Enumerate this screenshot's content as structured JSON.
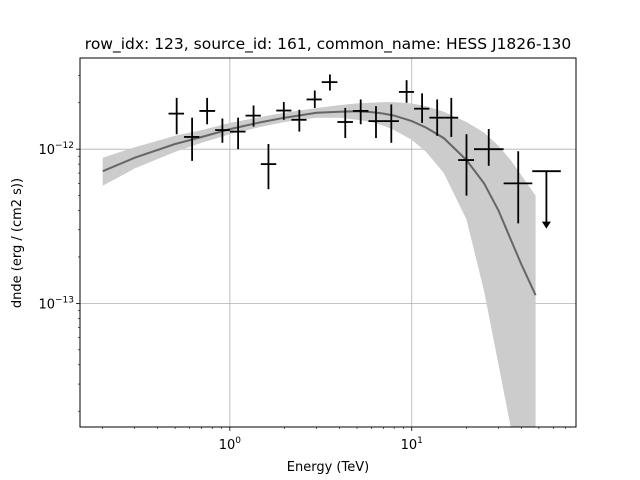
{
  "chart_data": {
    "type": "scatter",
    "title": "row_idx: 123, source_id: 161, common_name: HESS J1826-130",
    "xlabel": "Energy (TeV)",
    "ylabel": "dnde (erg / (cm2 s))",
    "x_scale": "log",
    "y_scale": "log",
    "xlim": [
      0.15,
      80
    ],
    "ylim": [
      1.58e-14,
      3.9e-12
    ],
    "x_ticks": [
      {
        "value": 1,
        "base": "10",
        "exp": "0"
      },
      {
        "value": 10,
        "base": "10",
        "exp": "1"
      }
    ],
    "y_ticks": [
      {
        "value": 1e-13,
        "base": "10",
        "exp": "−13"
      },
      {
        "value": 1e-12,
        "base": "10",
        "exp": "−12"
      }
    ],
    "grid": true,
    "legend": "none",
    "colors": {
      "points": "#000000",
      "model": "#666666",
      "band": "#cccccc"
    },
    "points": [
      {
        "x": 0.51,
        "y": 1.7e-12,
        "xlo": 0.46,
        "xhi": 0.56,
        "ylo": 1.25e-12,
        "yhi": 2.15e-12
      },
      {
        "x": 0.62,
        "y": 1.2e-12,
        "xlo": 0.56,
        "xhi": 0.68,
        "ylo": 8.4e-13,
        "yhi": 1.6e-12
      },
      {
        "x": 0.75,
        "y": 1.77e-12,
        "xlo": 0.68,
        "xhi": 0.83,
        "ylo": 1.45e-12,
        "yhi": 2.15e-12
      },
      {
        "x": 0.91,
        "y": 1.33e-12,
        "xlo": 0.83,
        "xhi": 1.0,
        "ylo": 1.1e-12,
        "yhi": 1.58e-12
      },
      {
        "x": 1.11,
        "y": 1.3e-12,
        "xlo": 1.0,
        "xhi": 1.22,
        "ylo": 1e-12,
        "yhi": 1.6e-12
      },
      {
        "x": 1.35,
        "y": 1.65e-12,
        "xlo": 1.22,
        "xhi": 1.48,
        "ylo": 1.4e-12,
        "yhi": 1.92e-12
      },
      {
        "x": 1.63,
        "y": 8e-13,
        "xlo": 1.48,
        "xhi": 1.8,
        "ylo": 5.5e-13,
        "yhi": 1.08e-12
      },
      {
        "x": 1.98,
        "y": 1.78e-12,
        "xlo": 1.8,
        "xhi": 2.18,
        "ylo": 1.55e-12,
        "yhi": 2.02e-12
      },
      {
        "x": 2.41,
        "y": 1.55e-12,
        "xlo": 2.18,
        "xhi": 2.64,
        "ylo": 1.3e-12,
        "yhi": 1.8e-12
      },
      {
        "x": 2.93,
        "y": 2.1e-12,
        "xlo": 2.64,
        "xhi": 3.2,
        "ylo": 1.85e-12,
        "yhi": 2.4e-12
      },
      {
        "x": 3.55,
        "y": 2.72e-12,
        "xlo": 3.2,
        "xhi": 3.9,
        "ylo": 2.4e-12,
        "yhi": 3.05e-12
      },
      {
        "x": 4.31,
        "y": 1.5e-12,
        "xlo": 3.9,
        "xhi": 4.75,
        "ylo": 1.18e-12,
        "yhi": 1.85e-12
      },
      {
        "x": 5.24,
        "y": 1.77e-12,
        "xlo": 4.75,
        "xhi": 5.78,
        "ylo": 1.45e-12,
        "yhi": 2.1e-12
      },
      {
        "x": 6.36,
        "y": 1.52e-12,
        "xlo": 5.78,
        "xhi": 7.0,
        "ylo": 1.18e-12,
        "yhi": 1.9e-12
      },
      {
        "x": 7.72,
        "y": 1.52e-12,
        "xlo": 7.0,
        "xhi": 8.5,
        "ylo": 1.1e-12,
        "yhi": 1.95e-12
      },
      {
        "x": 9.37,
        "y": 2.35e-12,
        "xlo": 8.5,
        "xhi": 10.3,
        "ylo": 2e-12,
        "yhi": 2.8e-12
      },
      {
        "x": 11.4,
        "y": 1.83e-12,
        "xlo": 10.3,
        "xhi": 12.5,
        "ylo": 1.48e-12,
        "yhi": 2.3e-12
      },
      {
        "x": 13.8,
        "y": 1.6e-12,
        "xlo": 12.5,
        "xhi": 15.2,
        "ylo": 1.22e-12,
        "yhi": 2.1e-12
      },
      {
        "x": 16.5,
        "y": 1.6e-12,
        "xlo": 15.2,
        "xhi": 18.0,
        "ylo": 1.2e-12,
        "yhi": 2.15e-12
      },
      {
        "x": 20.0,
        "y": 8.5e-13,
        "xlo": 18.0,
        "xhi": 22.0,
        "ylo": 5e-13,
        "yhi": 1.25e-12
      },
      {
        "x": 26.5,
        "y": 1e-12,
        "xlo": 22.0,
        "xhi": 32.0,
        "ylo": 7.8e-13,
        "yhi": 1.35e-12
      },
      {
        "x": 38.5,
        "y": 6e-13,
        "xlo": 32.0,
        "xhi": 46.0,
        "ylo": 3.3e-13,
        "yhi": 9.7e-13
      }
    ],
    "upper_limits": [
      {
        "x": 55.0,
        "y": 7.2e-13,
        "xlo": 46.0,
        "xhi": 66.0,
        "arrow_to": 3.1e-13
      }
    ],
    "model": {
      "x": [
        0.2,
        0.3,
        0.5,
        0.7,
        1.0,
        1.5,
        2.0,
        3.0,
        4.0,
        5.0,
        6.0,
        7.0,
        8.0,
        10.0,
        12.0,
        15.0,
        20.0,
        25.0,
        30.0,
        35.0,
        40.0,
        48.0
      ],
      "y": [
        7.2e-13,
        8.8e-13,
        1.08e-12,
        1.2e-12,
        1.35e-12,
        1.5e-12,
        1.6e-12,
        1.72e-12,
        1.75e-12,
        1.76e-12,
        1.74e-12,
        1.7e-12,
        1.65e-12,
        1.52e-12,
        1.38e-12,
        1.18e-12,
        8.5e-13,
        6e-13,
        4e-13,
        2.6e-13,
        1.8e-13,
        1.13e-13
      ],
      "band_lo": [
        5.8e-13,
        7.5e-13,
        9.6e-13,
        1.1e-12,
        1.25e-12,
        1.4e-12,
        1.5e-12,
        1.6e-12,
        1.6e-12,
        1.55e-12,
        1.5e-12,
        1.42e-12,
        1.33e-12,
        1.15e-12,
        9.6e-13,
        7e-13,
        3.5e-13,
        1.2e-13,
        4e-14,
        1.58e-14,
        1.58e-14,
        1.58e-14
      ],
      "band_hi": [
        8.8e-13,
        1.03e-12,
        1.22e-12,
        1.33e-12,
        1.48e-12,
        1.62e-12,
        1.72e-12,
        1.85e-12,
        1.93e-12,
        1.98e-12,
        2e-12,
        2.02e-12,
        2.02e-12,
        1.98e-12,
        1.9e-12,
        1.75e-12,
        1.5e-12,
        1.28e-12,
        1.05e-12,
        8.5e-13,
        6.8e-13,
        5e-13
      ]
    }
  }
}
